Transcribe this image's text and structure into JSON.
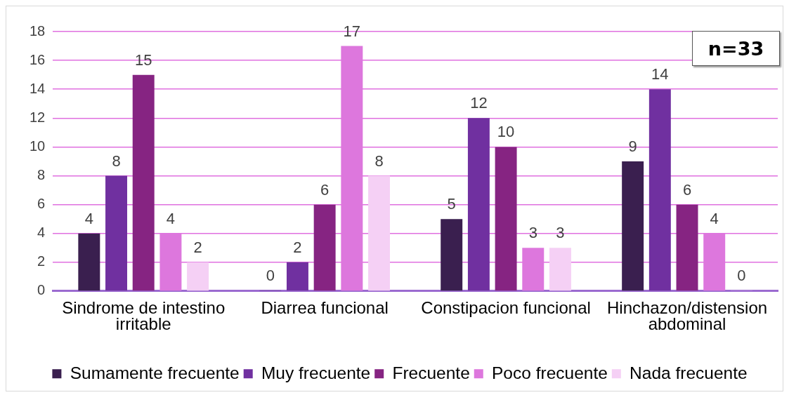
{
  "chart_data": {
    "type": "bar",
    "categories": [
      "Sindrome de intestino irritable",
      "Diarrea funcional",
      "Constipacion funcional",
      "Hinchazon/distension abdominal"
    ],
    "series": [
      {
        "name": "Sumamente frecuente",
        "color": "#3a1f4f",
        "values": [
          4,
          0,
          5,
          9
        ]
      },
      {
        "name": "Muy frecuente",
        "color": "#7030a0",
        "values": [
          8,
          2,
          12,
          14
        ]
      },
      {
        "name": "Frecuente",
        "color": "#862482",
        "values": [
          15,
          6,
          10,
          6
        ]
      },
      {
        "name": "Poco frecuente",
        "color": "#dd77dd",
        "values": [
          4,
          17,
          3,
          4
        ]
      },
      {
        "name": "Nada frecuente",
        "color": "#f5d0f5",
        "values": [
          2,
          8,
          3,
          0
        ]
      }
    ],
    "ylim": [
      0,
      18
    ],
    "yticks": [
      0,
      2,
      4,
      6,
      8,
      10,
      12,
      14,
      16,
      18
    ],
    "grid": "y",
    "legend": "bottom",
    "data_labels": true,
    "annotations": [
      "n=33"
    ]
  }
}
